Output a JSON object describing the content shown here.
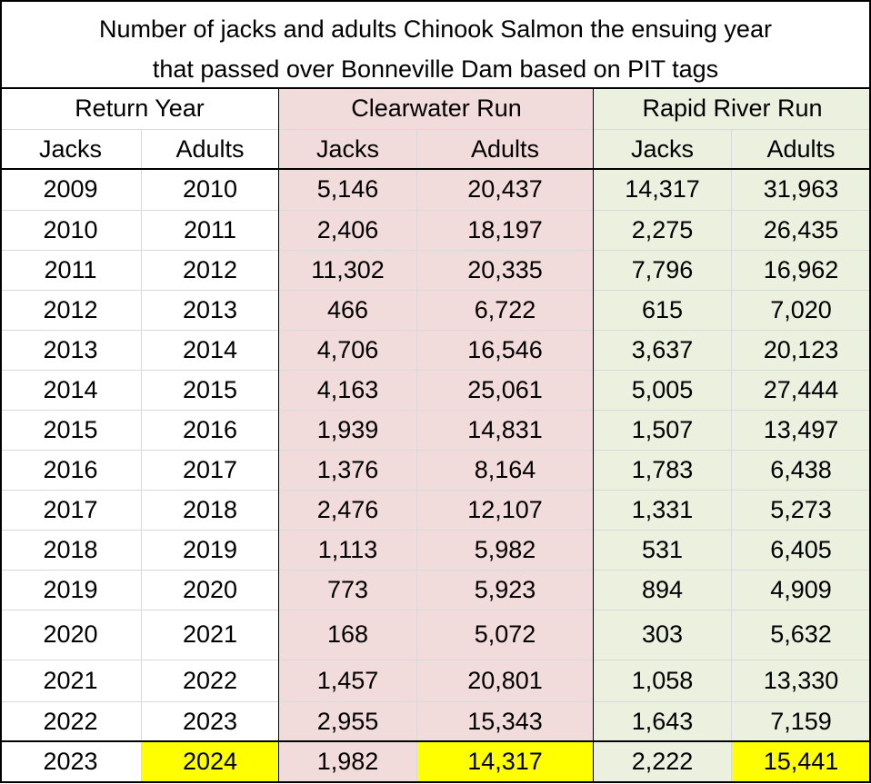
{
  "title": {
    "line1": "Number of jacks and adults Chinook Salmon the ensuing year",
    "line2": "that passed over Bonneville Dam based on PIT tags"
  },
  "colors": {
    "clearwater_bg": "#f2dcdb",
    "rapid_river_bg": "#ebf1de",
    "highlight": "#ffff00",
    "border": "#000000",
    "gridline": "#d9d9d9"
  },
  "headers": {
    "groups": [
      "Return Year",
      "Clearwater Run",
      "Rapid River Run"
    ],
    "sub": [
      "Jacks",
      "Adults",
      "Jacks",
      "Adults",
      "Jacks",
      "Adults"
    ]
  },
  "chart_data": {
    "type": "table",
    "title": "Number of jacks and adults Chinook Salmon the ensuing year that passed over Bonneville Dam based on PIT tags",
    "column_groups": [
      {
        "name": "Return Year",
        "columns": [
          "Jacks",
          "Adults"
        ]
      },
      {
        "name": "Clearwater Run",
        "columns": [
          "Jacks",
          "Adults"
        ]
      },
      {
        "name": "Rapid River Run",
        "columns": [
          "Jacks",
          "Adults"
        ]
      }
    ],
    "rows": [
      [
        "2009",
        "2010",
        "5,146",
        "20,437",
        "14,317",
        "31,963"
      ],
      [
        "2010",
        "2011",
        "2,406",
        "18,197",
        "2,275",
        "26,435"
      ],
      [
        "2011",
        "2012",
        "11,302",
        "20,335",
        "7,796",
        "16,962"
      ],
      [
        "2012",
        "2013",
        "466",
        "6,722",
        "615",
        "7,020"
      ],
      [
        "2013",
        "2014",
        "4,706",
        "16,546",
        "3,637",
        "20,123"
      ],
      [
        "2014",
        "2015",
        "4,163",
        "25,061",
        "5,005",
        "27,444"
      ],
      [
        "2015",
        "2016",
        "1,939",
        "14,831",
        "1,507",
        "13,497"
      ],
      [
        "2016",
        "2017",
        "1,376",
        "8,164",
        "1,783",
        "6,438"
      ],
      [
        "2017",
        "2018",
        "2,476",
        "12,107",
        "1,331",
        "5,273"
      ],
      [
        "2018",
        "2019",
        "1,113",
        "5,982",
        "531",
        "6,405"
      ],
      [
        "2019",
        "2020",
        "773",
        "5,923",
        "894",
        "4,909"
      ],
      [
        "2020",
        "2021",
        "168",
        "5,072",
        "303",
        "5,632"
      ],
      [
        "2021",
        "2022",
        "1,457",
        "20,801",
        "1,058",
        "13,330"
      ],
      [
        "2022",
        "2023",
        "2,955",
        "15,343",
        "1,643",
        "7,159"
      ],
      [
        "2023",
        "2024",
        "1,982",
        "14,317",
        "2,222",
        "15,441"
      ]
    ],
    "highlighted_cells": [
      [
        14,
        1
      ],
      [
        14,
        3
      ],
      [
        14,
        5
      ]
    ]
  }
}
